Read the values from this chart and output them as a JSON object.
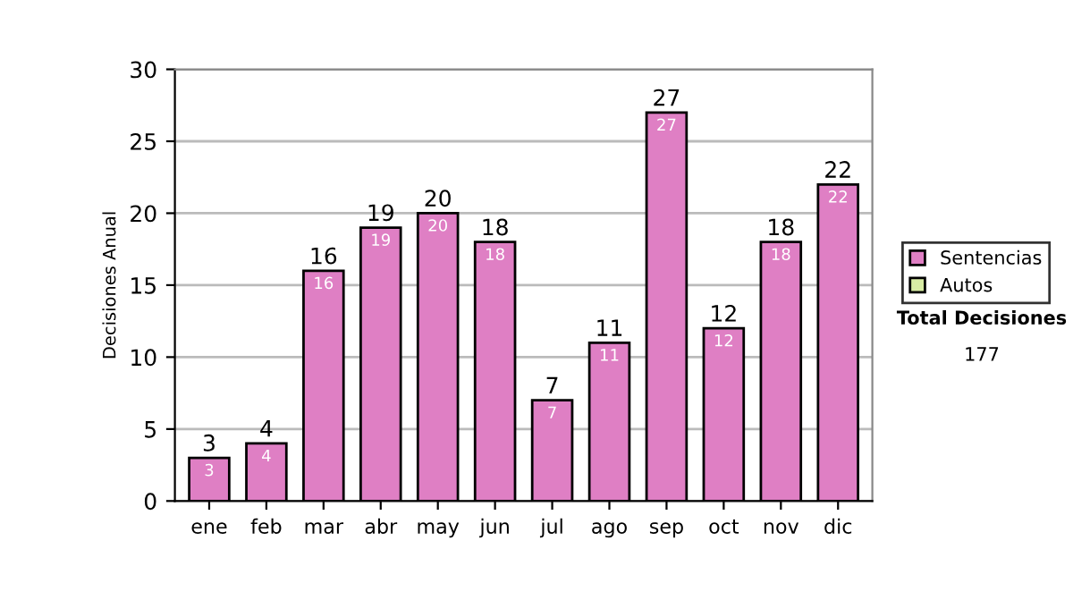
{
  "chart_data": {
    "type": "bar",
    "stacked": true,
    "ylabel": "Decisiones Anual",
    "categories": [
      "ene",
      "feb",
      "mar",
      "abr",
      "may",
      "jun",
      "jul",
      "ago",
      "sep",
      "oct",
      "nov",
      "dic"
    ],
    "series": [
      {
        "name": "Sentencias",
        "color": "#df7fc4",
        "values": [
          3,
          4,
          16,
          19,
          20,
          18,
          7,
          11,
          27,
          12,
          18,
          22
        ],
        "value_labels": [
          "3",
          "4",
          "16",
          "19",
          "20",
          "18",
          "7",
          "11",
          "27",
          "12",
          "18",
          "22"
        ]
      },
      {
        "name": "Autos",
        "color": "#d8eca4",
        "values": [
          null,
          null,
          null,
          null,
          null,
          null,
          null,
          null,
          null,
          null,
          null,
          null
        ]
      }
    ],
    "totals": [
      "3",
      "4",
      "16",
      "19",
      "20",
      "18",
      "7",
      "11",
      "27",
      "12",
      "18",
      "22"
    ],
    "ylim": [
      0,
      30
    ],
    "yticks": [
      0,
      5,
      10,
      15,
      20,
      25,
      30
    ],
    "grid": "y",
    "legend": "right",
    "annotations": [
      "Total Decisiones",
      "177"
    ]
  }
}
